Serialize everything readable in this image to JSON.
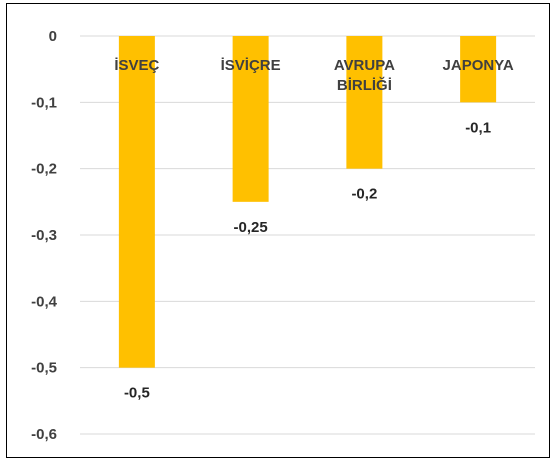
{
  "chart_data": {
    "type": "bar",
    "categories": [
      [
        "İSVEÇ"
      ],
      [
        "İSVİÇRE"
      ],
      [
        "AVRUPA",
        "BİRLİĞİ"
      ],
      [
        "JAPONYA"
      ]
    ],
    "values": [
      -0.5,
      -0.25,
      -0.2,
      -0.1
    ],
    "data_labels": [
      "-0,5",
      "-0,25",
      "-0,2",
      "-0,1"
    ],
    "ylim": [
      -0.6,
      0
    ],
    "y_ticks": [
      0,
      -0.1,
      -0.2,
      -0.3,
      -0.4,
      -0.5,
      -0.6
    ],
    "y_tick_labels": [
      "0",
      "-0,1",
      "-0,2",
      "-0,3",
      "-0,4",
      "-0,5",
      "-0,6"
    ],
    "grid": true,
    "bar_color": "#FFC000",
    "grid_color": "#D9D9D9",
    "title": "",
    "xlabel": "",
    "ylabel": ""
  }
}
